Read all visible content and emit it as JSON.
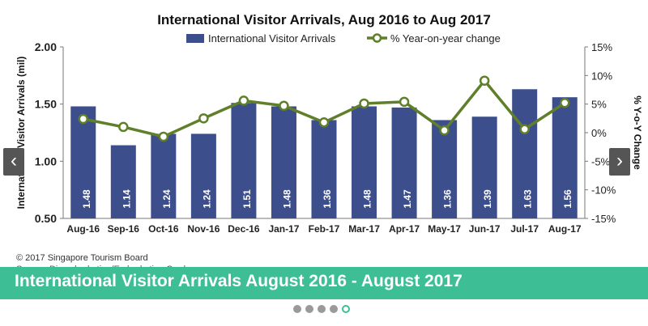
{
  "colors": {
    "bar": "#3d4e8c",
    "line": "#5f7f2a",
    "marker_fill": "#ffffff",
    "caption_bg": "#3dbe94",
    "dot": "#9a9a9a",
    "dot_active_border": "#3dbe94"
  },
  "chart_data": {
    "type": "bar",
    "title": "International Visitor Arrivals, Aug 2016 to Aug 2017",
    "xlabel": "",
    "ylabel": "International Visitor Arrivals (mil)",
    "y2label": "% Y-o-Y Change",
    "categories": [
      "Aug-16",
      "Sep-16",
      "Oct-16",
      "Nov-16",
      "Dec-16",
      "Jan-17",
      "Feb-17",
      "Mar-17",
      "Apr-17",
      "May-17",
      "Jun-17",
      "Jul-17",
      "Aug-17"
    ],
    "ylim": [
      0.5,
      2.0
    ],
    "yticks": [
      "0.50",
      "1.00",
      "1.50",
      "2.00"
    ],
    "y2lim": [
      -15,
      15
    ],
    "y2ticks": [
      "-15%",
      "-10%",
      "-5%",
      "0%",
      "5%",
      "10%",
      "15%"
    ],
    "legend_position": "top",
    "series": [
      {
        "name": "International Visitor Arrivals",
        "type": "bar",
        "axis": "left",
        "values": [
          1.48,
          1.14,
          1.24,
          1.24,
          1.51,
          1.48,
          1.36,
          1.48,
          1.47,
          1.36,
          1.39,
          1.63,
          1.56
        ],
        "labels": [
          "1.48",
          "1.14",
          "1.24",
          "1.24",
          "1.51",
          "1.48",
          "1.36",
          "1.48",
          "1.47",
          "1.36",
          "1.39",
          "1.63",
          "1.56"
        ]
      },
      {
        "name": "% Year-on-year change",
        "type": "line",
        "axis": "right",
        "values": [
          2.4,
          1.0,
          -0.7,
          2.5,
          5.6,
          4.7,
          1.8,
          5.1,
          5.4,
          0.4,
          9.1,
          0.6,
          5.2
        ]
      }
    ]
  },
  "copyright": "© 2017 Singapore Tourism Board",
  "source": "Source: Disembarkation/Embarkation Cards",
  "caption": "International Visitor Arrivals August 2016 - August 2017",
  "nav": {
    "prev": "‹",
    "next": "›"
  },
  "slides": {
    "count": 5,
    "active_index": 4
  }
}
